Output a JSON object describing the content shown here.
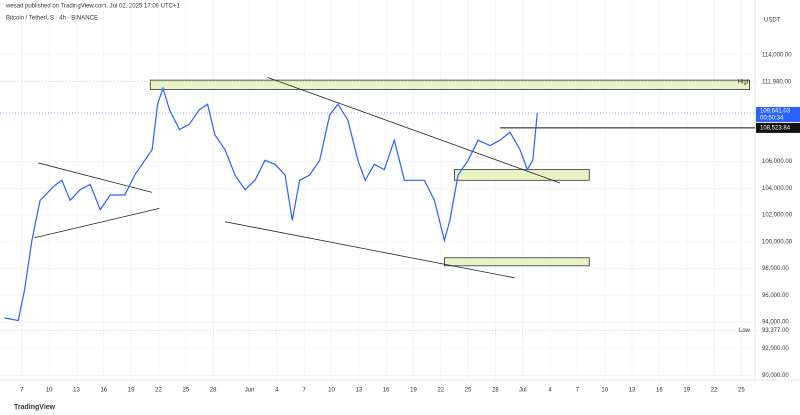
{
  "header": {
    "publisher": "wesad published on TradingView.com, Jul 02, 2025 17:09 UTC+1",
    "footer": "TradingView"
  },
  "chart_data": {
    "type": "line",
    "title": "Bitcoin / TetherUS · 4h · BINANCE",
    "y_axis_unit": "USDT",
    "color": "#2962ff",
    "grid": true,
    "x": [
      5.1,
      6.6,
      7.3,
      8.1,
      9.0,
      10.6,
      11.4,
      12.3,
      13.4,
      14.5,
      15.6,
      16.7,
      18.3,
      19.4,
      20.5,
      21.3,
      21.9,
      22.5,
      23.2,
      24.3,
      25.4,
      26.5,
      27.4,
      28.2,
      29.3,
      30.4,
      31.5,
      32.6,
      33.7,
      34.8,
      35.9,
      36.7,
      37.5,
      38.6,
      39.7,
      40.8,
      41.7,
      42.8,
      43.9,
      44.7,
      45.7,
      46.8,
      47.9,
      49.0,
      50.1,
      51.2,
      52.3,
      53.4,
      54.0,
      54.9,
      56.0,
      57.1,
      58.4,
      59.5,
      60.6,
      61.7,
      62.5,
      63.1,
      63.6
    ],
    "values": [
      94300,
      94100,
      96400,
      100100,
      103100,
      104200,
      104600,
      103100,
      103900,
      104300,
      102400,
      103500,
      103500,
      105000,
      106100,
      106900,
      110300,
      111500,
      109900,
      108400,
      108800,
      109900,
      110300,
      108000,
      106900,
      105000,
      103900,
      104600,
      106100,
      105800,
      105000,
      101600,
      104600,
      105000,
      106100,
      109500,
      110300,
      109100,
      106100,
      104600,
      105800,
      105400,
      107600,
      104600,
      104600,
      104600,
      103100,
      100100,
      101600,
      105000,
      106100,
      107600,
      107200,
      107600,
      108200,
      106900,
      105400,
      106100,
      109641.03
    ],
    "xlim": [
      4.6,
      87.5
    ],
    "ylim": [
      89800,
      117200
    ],
    "xticks": [
      7,
      10,
      13,
      16,
      19,
      22,
      25,
      28,
      {
        "value": 32,
        "label": "Jun"
      },
      {
        "value": 35,
        "label": "4"
      },
      {
        "value": 38,
        "label": "7"
      },
      {
        "value": 41,
        "label": "10"
      },
      {
        "value": 44,
        "label": "13"
      },
      {
        "value": 47,
        "label": "16"
      },
      {
        "value": 50,
        "label": "19"
      },
      {
        "value": 53,
        "label": "22"
      },
      {
        "value": 56,
        "label": "25"
      },
      {
        "value": 59,
        "label": "28"
      },
      {
        "value": 62,
        "label": "Jul"
      },
      {
        "value": 65,
        "label": "4"
      },
      {
        "value": 68,
        "label": "7"
      },
      {
        "value": 71,
        "label": "10"
      },
      {
        "value": 74,
        "label": "13"
      },
      {
        "value": 77,
        "label": "16"
      },
      {
        "value": 80,
        "label": "19"
      },
      {
        "value": 83,
        "label": "22"
      },
      {
        "value": 86,
        "label": "25"
      }
    ],
    "yticks": [
      {
        "value": 90000,
        "label": "90,000.00"
      },
      {
        "value": 92000,
        "label": "92,000.00"
      },
      {
        "value": 94000,
        "label": "94,000.00"
      },
      {
        "value": 96000,
        "label": "96,000.00"
      },
      {
        "value": 98000,
        "label": "98,000.00"
      },
      {
        "value": 100000,
        "label": "100,000.00"
      },
      {
        "value": 102000,
        "label": "102,000.00"
      },
      {
        "value": 104000,
        "label": "104,000.00"
      },
      {
        "value": 106000,
        "label": "106,000.00"
      },
      {
        "value": 114000,
        "label": "114,000.00"
      }
    ],
    "levels": [
      {
        "name": "High",
        "value": 111980,
        "label": "111,980.00"
      },
      {
        "name": "Low",
        "value": 93377,
        "label": "93,377.00"
      }
    ],
    "last_price": {
      "value": 109641.03,
      "label": "109,641.03",
      "countdown": "00:50:34"
    },
    "resistance": {
      "value": 108523.84,
      "label": "108,523.84",
      "x": 59.5
    },
    "zones": [
      {
        "x": [
          21.1,
          86.9
        ],
        "y": [
          111400,
          112100
        ]
      },
      {
        "x": [
          54.5,
          69.3
        ],
        "y": [
          104600,
          105400
        ]
      },
      {
        "x": [
          53.4,
          69.3
        ],
        "y": [
          98200,
          98800
        ]
      }
    ],
    "trendlines": [
      {
        "x": [
          34.0,
          66.1
        ],
        "y": [
          112300,
          104400
        ]
      },
      {
        "x": [
          29.3,
          61.1
        ],
        "y": [
          101500,
          97300
        ]
      },
      {
        "x": [
          8.8,
          21.3
        ],
        "y": [
          105900,
          103700
        ]
      },
      {
        "x": [
          8.4,
          22.1
        ],
        "y": [
          100300,
          102500
        ]
      }
    ]
  }
}
